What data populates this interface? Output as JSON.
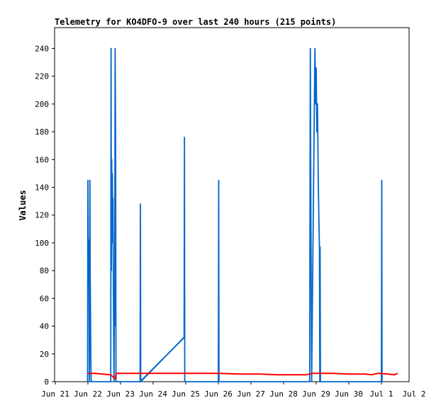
{
  "chart_data": {
    "type": "line",
    "title": "Telemetry for KO4DFO-9 over last 240 hours (215 points)",
    "xlabel": "",
    "ylabel": "Values",
    "xlim": [
      0,
      11
    ],
    "ylim": [
      0,
      255
    ],
    "x_ticks": [
      {
        "x": 0,
        "label": "Jun 21"
      },
      {
        "x": 1,
        "label": "Jun 22"
      },
      {
        "x": 2,
        "label": "Jun 23"
      },
      {
        "x": 3,
        "label": "Jun 24"
      },
      {
        "x": 4,
        "label": "Jun 25"
      },
      {
        "x": 5,
        "label": "Jun 26"
      },
      {
        "x": 6,
        "label": "Jun 27"
      },
      {
        "x": 7,
        "label": "Jun 28"
      },
      {
        "x": 8,
        "label": "Jun 29"
      },
      {
        "x": 9,
        "label": "Jun 30"
      },
      {
        "x": 10,
        "label": "Jul 1"
      },
      {
        "x": 11,
        "label": "Jul 2"
      }
    ],
    "y_ticks": [
      0,
      20,
      40,
      60,
      80,
      100,
      120,
      140,
      160,
      180,
      200,
      220,
      240
    ],
    "grid": false,
    "series": [
      {
        "color": "#0066cc",
        "points": [
          [
            0.99,
            0
          ],
          [
            1.0,
            145
          ],
          [
            1.01,
            70
          ],
          [
            1.03,
            102
          ],
          [
            1.045,
            0
          ],
          [
            1.06,
            145
          ],
          [
            1.07,
            80
          ],
          [
            1.08,
            50
          ],
          [
            1.09,
            16
          ],
          [
            1.1,
            0
          ],
          [
            1.7,
            0
          ],
          [
            1.71,
            240
          ],
          [
            1.72,
            80
          ],
          [
            1.73,
            160
          ],
          [
            1.74,
            100
          ],
          [
            1.75,
            150
          ],
          [
            1.76,
            115
          ],
          [
            1.77,
            132
          ],
          [
            1.78,
            70
          ],
          [
            1.8,
            0
          ],
          [
            1.81,
            60
          ],
          [
            1.82,
            40
          ],
          [
            1.835,
            240
          ],
          [
            1.85,
            175
          ],
          [
            1.86,
            0
          ],
          [
            2.6,
            0
          ],
          [
            2.61,
            128
          ],
          [
            2.62,
            0
          ],
          [
            3.95,
            32
          ],
          [
            3.96,
            176
          ],
          [
            3.97,
            0
          ],
          [
            5.0,
            0
          ],
          [
            5.01,
            145
          ],
          [
            5.02,
            0
          ],
          [
            7.8,
            0
          ],
          [
            7.82,
            240
          ],
          [
            7.84,
            112
          ],
          [
            7.86,
            0
          ],
          [
            7.96,
            240
          ],
          [
            7.98,
            200
          ],
          [
            8.0,
            226
          ],
          [
            8.02,
            180
          ],
          [
            8.04,
            200
          ],
          [
            8.06,
            150
          ],
          [
            8.08,
            120
          ],
          [
            8.1,
            95
          ],
          [
            8.11,
            0
          ],
          [
            8.12,
            97
          ],
          [
            8.13,
            0
          ],
          [
            10.0,
            0
          ],
          [
            10.01,
            145
          ],
          [
            10.02,
            0
          ]
        ]
      },
      {
        "color": "#0066cc",
        "points": [
          [
            2.6,
            0
          ],
          [
            3.96,
            32
          ]
        ]
      },
      {
        "color": "#ff0000",
        "points": [
          [
            0.99,
            6
          ],
          [
            1.2,
            6
          ],
          [
            1.7,
            5
          ],
          [
            1.84,
            2
          ],
          [
            1.86,
            6
          ],
          [
            2.6,
            6
          ],
          [
            5.0,
            6
          ],
          [
            5.7,
            5.5
          ],
          [
            6.3,
            5.5
          ],
          [
            6.8,
            5
          ],
          [
            7.3,
            5
          ],
          [
            7.7,
            5
          ],
          [
            7.9,
            6
          ],
          [
            8.5,
            6
          ],
          [
            9.0,
            5.5
          ],
          [
            9.5,
            5.5
          ],
          [
            9.7,
            5
          ],
          [
            9.9,
            6
          ],
          [
            10.2,
            5.5
          ],
          [
            10.4,
            5
          ],
          [
            10.5,
            6
          ]
        ]
      }
    ]
  }
}
